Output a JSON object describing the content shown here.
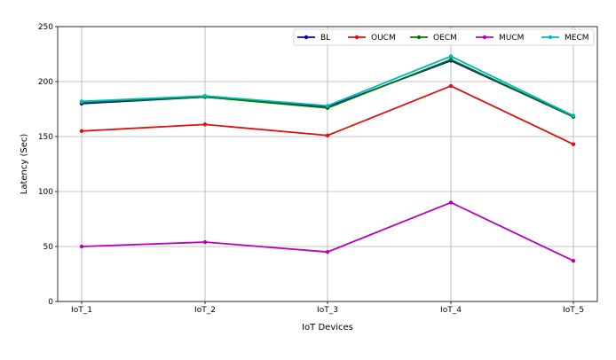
{
  "chart_data": {
    "type": "line",
    "categories": [
      "IoT_1",
      "IoT_2",
      "IoT_3",
      "IoT_4",
      "IoT_5"
    ],
    "xlabel": "IoT Devices",
    "ylabel": "Latency (Sec)",
    "ylim": [
      0,
      250
    ],
    "yticks": [
      0,
      50,
      100,
      150,
      200,
      250
    ],
    "grid": true,
    "legend_position": "top-right",
    "series": [
      {
        "name": "BL",
        "color": "#0000cc",
        "values": [
          180,
          186,
          177,
          219,
          168
        ]
      },
      {
        "name": "OUCM",
        "color": "#e01010",
        "values": [
          155,
          161,
          151,
          196,
          143
        ]
      },
      {
        "name": "OECM",
        "color": "#007a00",
        "values": [
          181,
          186,
          176,
          220,
          168
        ]
      },
      {
        "name": "MUCM",
        "color": "#bb00bb",
        "values": [
          50,
          54,
          45,
          90,
          37
        ]
      },
      {
        "name": "MECM",
        "color": "#00b8c0",
        "values": [
          182,
          187,
          178,
          223,
          169
        ]
      }
    ]
  }
}
